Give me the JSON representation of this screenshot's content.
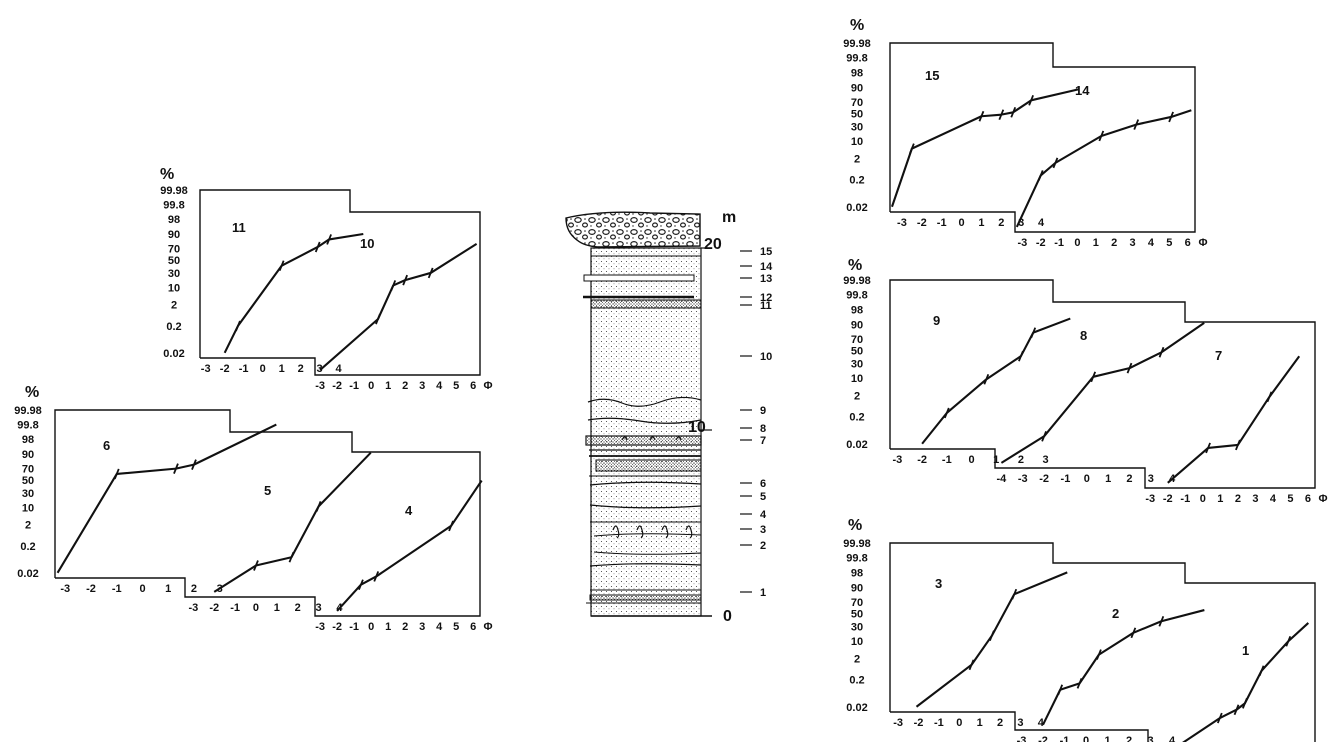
{
  "percent_symbol": "%",
  "phi_symbol": "Φ",
  "y_ticks": [
    "99.98",
    "99.8",
    "98",
    "90",
    "70",
    "50",
    "30",
    "10",
    "2",
    "0.2",
    "0.02"
  ],
  "y_values": [
    99.98,
    99.8,
    98,
    90,
    70,
    50,
    30,
    10,
    2,
    0.2,
    0.02
  ],
  "column": {
    "unit": "m",
    "scale_labels": [
      "20",
      "10",
      "0"
    ],
    "sample_labels": [
      "15",
      "14",
      "13",
      "12",
      "11",
      "10",
      "9",
      "8",
      "7",
      "6",
      "5",
      "4",
      "3",
      "2",
      "1"
    ]
  },
  "chart_data": [
    {
      "type": "line",
      "title": "",
      "xlabel": "Φ",
      "ylabel": "%",
      "ylim": [
        0.02,
        99.98
      ],
      "y_scale": "probability",
      "series": [
        {
          "name": "11",
          "x": [
            -2,
            -1.3,
            1,
            2.9,
            3.5,
            5.3
          ],
          "y": [
            0.02,
            0.2,
            40,
            72,
            82,
            90
          ]
        },
        {
          "name": "10",
          "x": [
            -3,
            0.4,
            1.3,
            2,
            3.5,
            6.2
          ],
          "y": [
            0.02,
            3,
            40,
            50,
            62,
            96
          ]
        }
      ],
      "x_ticks": [
        [
          "-3",
          "-2",
          "-1",
          "0",
          "1",
          "2",
          "3",
          "4"
        ],
        [
          "-3",
          "-2",
          "-1",
          "0",
          "1",
          "2",
          "3",
          "4",
          "5",
          "6"
        ]
      ]
    },
    {
      "type": "line",
      "title": "",
      "xlabel": "Φ",
      "ylabel": "%",
      "ylim": [
        0.02,
        99.98
      ],
      "y_scale": "probability",
      "series": [
        {
          "name": "6",
          "x": [
            -3.3,
            -1,
            1.3,
            2,
            5.2
          ],
          "y": [
            0.02,
            60,
            70,
            75,
            99.8
          ]
        },
        {
          "name": "5",
          "x": [
            -2,
            0,
            1.7,
            3,
            5.5
          ],
          "y": [
            0.02,
            0.2,
            0.5,
            40,
            99
          ]
        },
        {
          "name": "4",
          "x": [
            -2,
            -0.6,
            0.3,
            4.7,
            6.5
          ],
          "y": [
            0.02,
            0.2,
            0.5,
            40,
            98
          ]
        }
      ],
      "x_ticks": [
        [
          "-3",
          "-2",
          "-1",
          "0",
          "1",
          "2",
          "3"
        ],
        [
          "-3",
          "-2",
          "-1",
          "0",
          "1",
          "2",
          "3",
          "4"
        ],
        [
          "-3",
          "-2",
          "-1",
          "0",
          "1",
          "2",
          "3",
          "4",
          "5",
          "6"
        ]
      ]
    },
    {
      "type": "line",
      "title": "",
      "xlabel": "Φ",
      "ylabel": "%",
      "ylim": [
        0.02,
        99.98
      ],
      "y_scale": "probability",
      "series": [
        {
          "name": "15",
          "x": [
            -3.5,
            -2.5,
            1,
            2,
            2.6,
            3.5,
            5.9
          ],
          "y": [
            0.02,
            5,
            45,
            48,
            52,
            72,
            87
          ]
        },
        {
          "name": "14",
          "x": [
            -3.3,
            -2,
            -1.2,
            1.3,
            3.2,
            5.1,
            6.2
          ],
          "y": [
            0.02,
            3,
            10,
            50,
            70,
            80,
            90
          ]
        }
      ],
      "x_ticks": [
        [
          "-3",
          "-2",
          "-1",
          "0",
          "1",
          "2",
          "3",
          "4"
        ],
        [
          "-3",
          "-2",
          "-1",
          "0",
          "1",
          "2",
          "3",
          "4",
          "5",
          "6"
        ]
      ]
    },
    {
      "type": "line",
      "title": "",
      "xlabel": "Φ",
      "ylabel": "%",
      "ylim": [
        0.02,
        99.98
      ],
      "y_scale": "probability",
      "series": [
        {
          "name": "9",
          "x": [
            -2,
            -1,
            0.6,
            2,
            2.5,
            4
          ],
          "y": [
            0.02,
            0.3,
            9,
            40,
            78,
            93
          ]
        },
        {
          "name": "8",
          "x": [
            -4,
            -2,
            0.3,
            2,
            3.5,
            5.5
          ],
          "y": [
            0.02,
            0.2,
            40,
            55,
            80,
            99
          ]
        },
        {
          "name": "7",
          "x": [
            -2,
            0.3,
            2,
            3.8,
            5.5
          ],
          "y": [
            0.02,
            0.5,
            0.7,
            40,
            95
          ]
        }
      ],
      "x_ticks": [
        [
          "-3",
          "-2",
          "-1",
          "0",
          "1",
          "2",
          "3"
        ],
        [
          "-4",
          "-3",
          "-2",
          "-1",
          "0",
          "1",
          "2",
          "3",
          "4"
        ],
        [
          "-3",
          "-2",
          "-1",
          "0",
          "1",
          "2",
          "3",
          "4",
          "5",
          "6"
        ]
      ]
    },
    {
      "type": "line",
      "title": "",
      "xlabel": "Φ",
      "ylabel": "%",
      "ylim": [
        0.02,
        99.98
      ],
      "y_scale": "probability",
      "series": [
        {
          "name": "3",
          "x": [
            -2.1,
            0.6,
            1.6,
            2.7,
            5.3
          ],
          "y": [
            0.02,
            1,
            15,
            80,
            98
          ]
        },
        {
          "name": "2",
          "x": [
            -2,
            -1.2,
            -0.3,
            0.6,
            2.2,
            3.5,
            5.5
          ],
          "y": [
            0.02,
            0.5,
            1,
            15,
            50,
            70,
            85
          ]
        },
        {
          "name": "1",
          "x": [
            -1.5,
            0.9,
            1.9,
            2.4,
            3.4,
            5,
            6.2
          ],
          "y": [
            0.02,
            0.2,
            0.5,
            1,
            20,
            70,
            92
          ]
        }
      ],
      "x_ticks": [
        [
          "-3",
          "-2",
          "-1",
          "0",
          "1",
          "2",
          "3",
          "4"
        ],
        [
          "-3",
          "-2",
          "-1",
          "0",
          "1",
          "2",
          "3",
          "4"
        ],
        [
          "-3",
          "-2",
          "-1",
          "0",
          "1",
          "2",
          "3",
          "4",
          "5",
          "6"
        ]
      ]
    }
  ]
}
